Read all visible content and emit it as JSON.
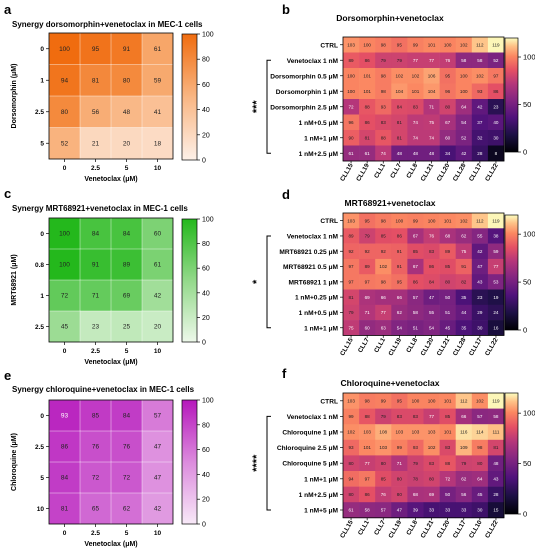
{
  "chart_data": [
    {
      "letter": "a",
      "type": "heatmap",
      "style": "small",
      "palette": "orange",
      "title": "Synergy dorsomorphin+venetoclax in MEC-1 cells",
      "xlabel": "Venetoclax (μM)",
      "ylabel": "Dorsomorphin (μM)",
      "xcats": [
        "0",
        "2.5",
        "5",
        "10"
      ],
      "ycats": [
        "0",
        "1",
        "2.5",
        "5"
      ],
      "values": [
        [
          100,
          95,
          91,
          61
        ],
        [
          94,
          81,
          80,
          59
        ],
        [
          80,
          56,
          48,
          41
        ],
        [
          52,
          21,
          20,
          18
        ]
      ],
      "colorbar": {
        "min": 0,
        "max": 100,
        "ticks": [
          "0",
          "20",
          "40",
          "60",
          "80",
          "100"
        ]
      }
    },
    {
      "letter": "b",
      "type": "heatmap",
      "style": "large",
      "palette": "magma",
      "title": "Dorsomorphin+venetoclax",
      "significance": "***",
      "xcats": [
        "CLL15",
        "CLL19",
        "CLL1",
        "CLL7",
        "CLL8",
        "CLL21",
        "CLL20",
        "CLL28",
        "CLL17",
        "CLL22"
      ],
      "ycats": [
        "CTRL",
        "Venetoclax 1 nM",
        "Dorsomorphin 0.5 μM",
        "Dorsomorphin 1 μM",
        "Dorsomorphin 2.5 μM",
        "1 nM+0.5 μM",
        "1 nM+1 μM",
        "1 nM+2.5 μM"
      ],
      "values": [
        [
          103,
          100,
          98,
          95,
          99,
          101,
          100,
          102,
          112,
          119
        ],
        [
          89,
          86,
          79,
          79,
          77,
          77,
          76,
          58,
          58,
          52
        ],
        [
          100,
          101,
          98,
          102,
          102,
          106,
          95,
          100,
          102,
          97
        ],
        [
          100,
          101,
          98,
          104,
          101,
          104,
          96,
          100,
          93,
          86
        ],
        [
          72,
          88,
          93,
          84,
          83,
          71,
          80,
          64,
          42,
          23
        ],
        [
          96,
          86,
          83,
          81,
          74,
          75,
          67,
          54,
          37,
          40
        ],
        [
          90,
          81,
          88,
          81,
          74,
          74,
          60,
          52,
          32,
          30
        ],
        [
          61,
          61,
          74,
          48,
          48,
          48,
          34,
          42,
          28,
          8
        ]
      ],
      "colorbar": {
        "min": 0,
        "max": 120,
        "ticks": [
          "0",
          "50",
          "100"
        ]
      }
    },
    {
      "letter": "c",
      "type": "heatmap",
      "style": "small",
      "palette": "green",
      "title": "Synergy MRT68921+venetoclax in MEC-1 cells",
      "xlabel": "Venetoclax (μM)",
      "ylabel": "MRT68921 (μM)",
      "xcats": [
        "0",
        "2.5",
        "5",
        "10"
      ],
      "ycats": [
        "0",
        "0.8",
        "1",
        "2.5"
      ],
      "values": [
        [
          100,
          84,
          84,
          60
        ],
        [
          100,
          91,
          89,
          61
        ],
        [
          72,
          71,
          69,
          42
        ],
        [
          45,
          23,
          25,
          20
        ]
      ],
      "colorbar": {
        "min": 0,
        "max": 100,
        "ticks": [
          "0",
          "20",
          "40",
          "60",
          "80",
          "100"
        ]
      }
    },
    {
      "letter": "d",
      "type": "heatmap",
      "style": "large",
      "palette": "magma",
      "title": "MRT68921+venetoclax",
      "significance": "*",
      "xcats": [
        "CLL15",
        "CLL7",
        "CLL1",
        "CLL19",
        "CLL8",
        "CLL20",
        "CLL21",
        "CLL28",
        "CLL17",
        "CLL22"
      ],
      "ycats": [
        "CTRL",
        "Venetoclax 1 nM",
        "MRT68921 0.25 μM",
        "MRT68921 0.5 μM",
        "MRT68921 1 μM",
        "1 nM+0.25 μM",
        "1 nM+0.5 μM",
        "1 nM+1 μM"
      ],
      "values": [
        [
          103,
          95,
          98,
          100,
          99,
          100,
          101,
          102,
          112,
          119
        ],
        [
          89,
          79,
          85,
          86,
          67,
          76,
          68,
          62,
          55,
          38
        ],
        [
          92,
          92,
          92,
          91,
          85,
          83,
          89,
          75,
          42,
          59
        ],
        [
          97,
          89,
          102,
          91,
          67,
          86,
          85,
          91,
          47,
          77
        ],
        [
          97,
          97,
          98,
          95,
          86,
          84,
          80,
          82,
          43,
          53
        ],
        [
          81,
          69,
          66,
          66,
          57,
          47,
          50,
          35,
          23,
          19
        ],
        [
          79,
          71,
          77,
          62,
          58,
          55,
          51,
          44,
          29,
          24
        ],
        [
          75,
          60,
          63,
          54,
          51,
          54,
          45,
          35,
          30,
          16
        ]
      ],
      "colorbar": {
        "min": 0,
        "max": 120,
        "ticks": [
          "0",
          "50",
          "100"
        ]
      }
    },
    {
      "letter": "e",
      "type": "heatmap",
      "style": "small",
      "palette": "magenta",
      "title": "Synergy chloroquine+venetoclax in MEC-1 cells",
      "xlabel": "Venetoclax (μM)",
      "ylabel": "Chloroquine (μM)",
      "xcats": [
        "0",
        "2.5",
        "5",
        "10"
      ],
      "ycats": [
        "0",
        "2.5",
        "5",
        "10"
      ],
      "values": [
        [
          93,
          85,
          84,
          57
        ],
        [
          86,
          76,
          76,
          47
        ],
        [
          84,
          72,
          72,
          47
        ],
        [
          81,
          65,
          62,
          42
        ]
      ],
      "colorbar": {
        "min": 0,
        "max": 100,
        "ticks": [
          "0",
          "20",
          "40",
          "60",
          "80",
          "100"
        ]
      }
    },
    {
      "letter": "f",
      "type": "heatmap",
      "style": "large",
      "palette": "magma",
      "title": "Chloroquine+venetoclax",
      "significance": "****",
      "xcats": [
        "CLL15",
        "CLL1",
        "CLL7",
        "CLL19",
        "CLL8",
        "CLL21",
        "CLL20",
        "CLL17",
        "CLL10",
        "CLL22"
      ],
      "ycats": [
        "CTRL",
        "Venetoclax 1 nM",
        "Chloroquine 1 μM",
        "Chloroquine 2.5 μM",
        "Chloroquine 5 μM",
        "1 nM+1 μM",
        "1 nM+2.5 μM",
        "1 nM+5 μM"
      ],
      "values": [
        [
          103,
          98,
          99,
          95,
          100,
          100,
          101,
          112,
          102,
          119
        ],
        [
          99,
          88,
          79,
          83,
          83,
          77,
          85,
          66,
          57,
          58
        ],
        [
          102,
          103,
          108,
          103,
          103,
          103,
          101,
          116,
          114,
          111
        ],
        [
          93,
          101,
          103,
          99,
          93,
          102,
          83,
          109,
          98,
          81
        ],
        [
          80,
          77,
          80,
          71,
          79,
          83,
          88,
          79,
          80,
          48
        ],
        [
          94,
          97,
          85,
          80,
          78,
          80,
          72,
          62,
          64,
          43
        ],
        [
          80,
          86,
          76,
          80,
          68,
          69,
          50,
          56,
          45,
          28
        ],
        [
          61,
          58,
          57,
          47,
          39,
          33,
          33,
          33,
          30,
          15
        ]
      ],
      "colorbar": {
        "min": 0,
        "max": 120,
        "ticks": [
          "0",
          "50",
          "100"
        ]
      }
    }
  ]
}
